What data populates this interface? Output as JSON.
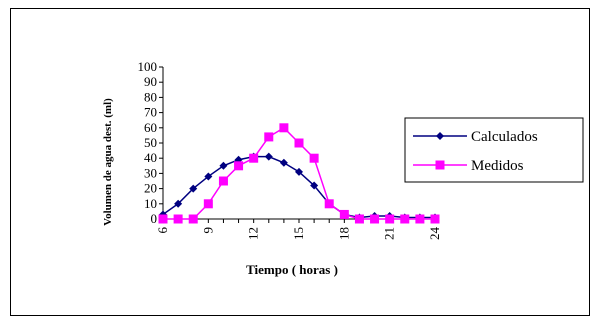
{
  "chart_data": {
    "type": "line",
    "title": "",
    "xlabel": "Tiempo  ( horas )",
    "ylabel": "Volumen de agua dest. (ml)",
    "ylim": [
      0,
      100
    ],
    "yticks": [
      "0",
      "10",
      "20",
      "30",
      "40",
      "50",
      "60",
      "70",
      "80",
      "90",
      "100"
    ],
    "xticks": [
      "6",
      "9",
      "12",
      "15",
      "18",
      "21",
      "24"
    ],
    "x": [
      6,
      7,
      8,
      9,
      10,
      11,
      12,
      13,
      14,
      15,
      16,
      17,
      18,
      19,
      20,
      21,
      22,
      23,
      24
    ],
    "grid": false,
    "legend_position": "right",
    "series": [
      {
        "name": "Calculados",
        "color": "#000080",
        "marker": "diamond",
        "values": [
          3,
          10,
          20,
          28,
          35,
          39,
          41,
          41,
          37,
          31,
          22,
          10,
          3,
          1,
          2,
          2,
          1,
          1,
          1
        ]
      },
      {
        "name": "Medidos",
        "color": "#ff00ff",
        "marker": "square",
        "values": [
          0,
          0,
          0,
          10,
          25,
          35,
          40,
          54,
          60,
          50,
          40,
          10,
          3,
          0,
          0,
          0,
          0,
          0,
          0
        ]
      }
    ]
  }
}
